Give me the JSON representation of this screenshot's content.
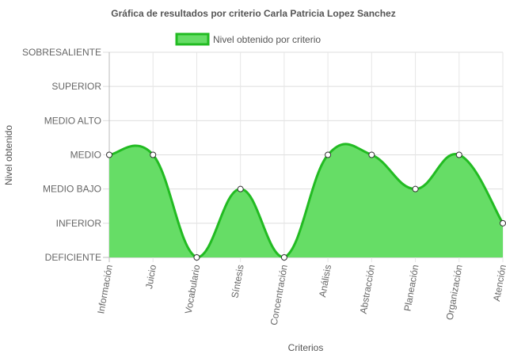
{
  "chart_data": {
    "type": "area",
    "title": "Gráfica de resultados por criterio Carla Patricia Lopez Sanchez",
    "xlabel": "Criterios",
    "ylabel": "Nivel obtenido",
    "y_levels": [
      "DEFICIENTE",
      "INFERIOR",
      "MEDIO BAJO",
      "MEDIO",
      "MEDIO ALTO",
      "SUPERIOR",
      "SOBRESALIENTE"
    ],
    "categories": [
      "Información",
      "Juicio",
      "Vocabulario",
      "Síntesis",
      "Concentración",
      "Análisis",
      "Abstracción",
      "Planeación",
      "Organización",
      "Atención"
    ],
    "series": [
      {
        "name": "Nivel obtenido por criterio",
        "values": [
          "MEDIO",
          "MEDIO",
          "DEFICIENTE",
          "MEDIO BAJO",
          "DEFICIENTE",
          "MEDIO",
          "MEDIO",
          "MEDIO BAJO",
          "MEDIO",
          "INFERIOR"
        ],
        "color": "#22bb22",
        "fill": "#66dd66"
      }
    ],
    "legend": "top",
    "grid": true
  }
}
